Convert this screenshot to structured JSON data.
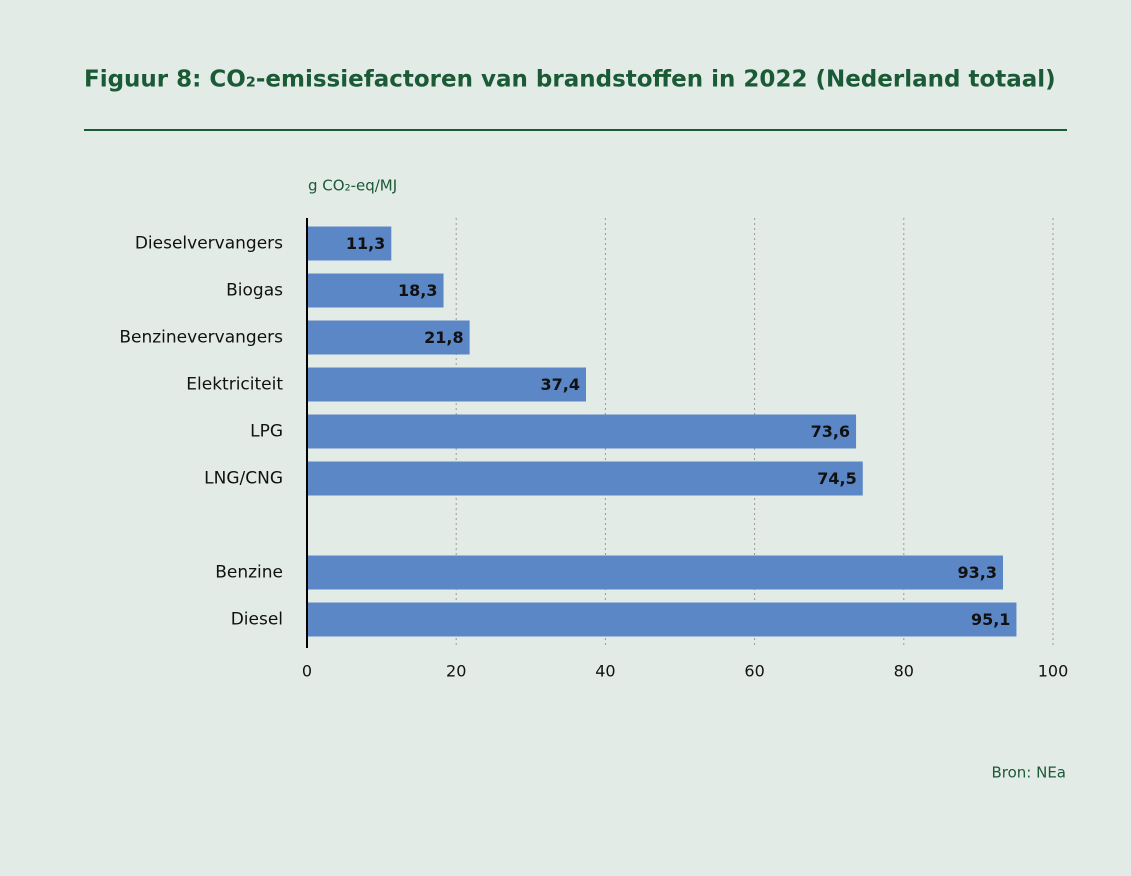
{
  "chart_data": {
    "type": "bar",
    "orientation": "horizontal",
    "title": "Figuur 8: CO₂-emissiefactoren van brandstoffen in 2022 (Nederland totaal)",
    "axis_label": "g CO₂-eq/MJ",
    "categories": [
      "Dieselvervangers",
      "Biogas",
      "Benzinevervangers",
      "Elektriciteit",
      "LPG",
      "LNG/CNG",
      null,
      "Benzine",
      "Diesel"
    ],
    "values": [
      11.3,
      18.3,
      21.8,
      37.4,
      73.6,
      74.5,
      null,
      93.3,
      95.1
    ],
    "value_labels": [
      "11,3",
      "18,3",
      "21,8",
      "37,4",
      "73,6",
      "74,5",
      null,
      "93,3",
      "95,1"
    ],
    "color": "#5b87c6",
    "xlim": [
      0,
      100
    ],
    "xticks": [
      0,
      20,
      40,
      60,
      80,
      100
    ],
    "grid": true,
    "source": "Bron: NEa"
  }
}
